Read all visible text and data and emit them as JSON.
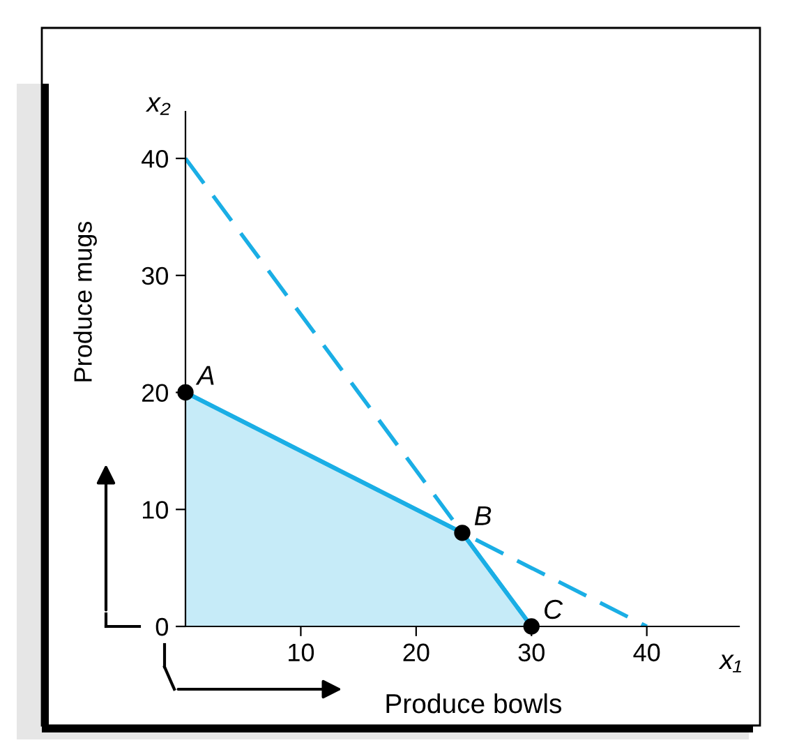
{
  "chart_data": {
    "type": "line",
    "xlabel": "Produce bowls",
    "ylabel": "Produce mugs",
    "xlim": [
      0,
      48
    ],
    "ylim": [
      0,
      44
    ],
    "xticks": [
      10,
      20,
      30,
      40
    ],
    "yticks": [
      0,
      10,
      20,
      30,
      40
    ],
    "grid": false,
    "legend": false,
    "series": [
      {
        "type": "area",
        "color": "#1aaee5",
        "x": [
          0,
          24,
          30
        ],
        "values": [
          20,
          8,
          0
        ],
        "line_style": "solid",
        "marker": "none"
      },
      {
        "color": "#1aaee5",
        "x": [
          0,
          30
        ],
        "values": [
          40,
          0
        ],
        "line_style": "dashed",
        "marker": "none"
      },
      {
        "color": "#1aaee5",
        "x": [
          0,
          40
        ],
        "values": [
          20,
          0
        ],
        "line_style": "dashed",
        "marker": "none"
      },
      {
        "type": "scatter",
        "color": "#000000",
        "x": [
          0,
          24,
          30
        ],
        "values": [
          20,
          8,
          0
        ],
        "marker": "circle"
      }
    ],
    "annotations": [
      "x₁",
      "x₂",
      {
        "text": "A",
        "x": 0,
        "y": 20
      },
      {
        "text": "B",
        "x": 24,
        "y": 8
      },
      {
        "text": "C",
        "x": 30,
        "y": 0
      }
    ]
  }
}
